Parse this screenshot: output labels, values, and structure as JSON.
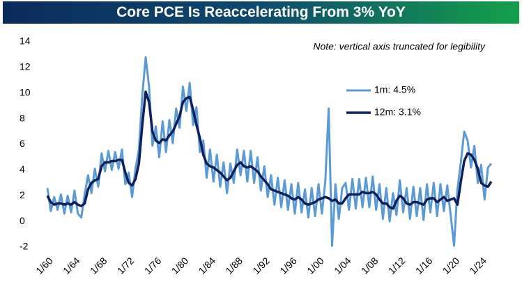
{
  "chart_data": {
    "type": "line",
    "title": "Core PCE Is Reaccelerating From 3% YoY",
    "annotation": "Note: vertical axis truncated for legibility",
    "x": [
      1960,
      1960.5,
      1961,
      1961.5,
      1962,
      1962.5,
      1963,
      1963.5,
      1964,
      1964.5,
      1965,
      1965.5,
      1966,
      1966.5,
      1967,
      1967.5,
      1968,
      1968.5,
      1969,
      1969.5,
      1970,
      1970.5,
      1971,
      1971.5,
      1972,
      1972.5,
      1973,
      1973.5,
      1974,
      1974.5,
      1975,
      1975.5,
      1976,
      1976.5,
      1977,
      1977.5,
      1978,
      1978.5,
      1979,
      1979.5,
      1980,
      1980.5,
      1981,
      1981.5,
      1982,
      1982.5,
      1983,
      1983.5,
      1984,
      1984.5,
      1985,
      1985.5,
      1986,
      1986.5,
      1987,
      1987.5,
      1988,
      1988.5,
      1989,
      1989.5,
      1990,
      1990.5,
      1991,
      1991.5,
      1992,
      1992.5,
      1993,
      1993.5,
      1994,
      1994.5,
      1995,
      1995.5,
      1996,
      1996.5,
      1997,
      1997.5,
      1998,
      1998.5,
      1999,
      1999.5,
      2000,
      2000.5,
      2001,
      2001.5,
      2002,
      2002.5,
      2003,
      2003.5,
      2004,
      2004.5,
      2005,
      2005.5,
      2006,
      2006.5,
      2007,
      2007.5,
      2008,
      2008.5,
      2009,
      2009.5,
      2010,
      2010.5,
      2011,
      2011.5,
      2012,
      2012.5,
      2013,
      2013.5,
      2014,
      2014.5,
      2015,
      2015.5,
      2016,
      2016.5,
      2017,
      2017.5,
      2018,
      2018.5,
      2019,
      2019.5,
      2020,
      2020.5,
      2021,
      2021.5,
      2022,
      2022.5,
      2023,
      2023.5,
      2024,
      2024.5,
      2025,
      2025.5
    ],
    "series": [
      {
        "name": "1m: 4.5%",
        "color": "#5b9bd5",
        "width": 3,
        "values": [
          2.6,
          0.8,
          1.9,
          0.9,
          2.1,
          0.6,
          2.0,
          0.7,
          2.4,
          0.6,
          0.3,
          2.1,
          3.6,
          2.2,
          4.1,
          2.7,
          5.3,
          3.9,
          5.5,
          4.0,
          5.4,
          4.1,
          5.6,
          2.9,
          3.8,
          1.9,
          4.1,
          5.6,
          9.8,
          12.8,
          10.5,
          5.9,
          7.4,
          5.0,
          7.8,
          5.4,
          7.9,
          6.1,
          8.8,
          7.3,
          10.5,
          8.6,
          10.8,
          7.5,
          8.9,
          5.4,
          6.3,
          3.4,
          5.6,
          3.1,
          5.2,
          2.7,
          4.6,
          2.2,
          4.5,
          3.0,
          5.6,
          3.6,
          5.5,
          3.1,
          5.5,
          3.0,
          5.0,
          2.4,
          4.3,
          1.9,
          3.6,
          1.3,
          3.4,
          1.1,
          3.2,
          0.9,
          2.9,
          0.6,
          3.0,
          0.7,
          2.5,
          0.3,
          2.6,
          0.4,
          2.9,
          0.6,
          3.1,
          8.8,
          -1.9,
          2.9,
          0.2,
          2.6,
          3.0,
          0.9,
          3.3,
          1.0,
          3.3,
          1.1,
          3.4,
          1.1,
          3.5,
          0.9,
          2.9,
          0.2,
          2.6,
          0.0,
          2.2,
          0.5,
          3.2,
          0.7,
          2.6,
          0.2,
          2.7,
          0.4,
          2.6,
          0.1,
          2.9,
          0.7,
          3.0,
          0.4,
          2.9,
          0.8,
          2.8,
          0.5,
          -1.9,
          2.5,
          4.6,
          7.0,
          6.3,
          4.2,
          5.9,
          3.0,
          4.4,
          1.7,
          4.2,
          4.5
        ]
      },
      {
        "name": "12m: 3.1%",
        "color": "#0d1f5c",
        "width": 3.5,
        "values": [
          2.0,
          1.5,
          1.3,
          1.4,
          1.4,
          1.3,
          1.4,
          1.3,
          1.5,
          1.3,
          1.2,
          1.4,
          2.5,
          3.0,
          3.2,
          3.3,
          4.3,
          4.6,
          4.6,
          4.7,
          4.7,
          4.8,
          4.8,
          3.8,
          3.0,
          2.8,
          3.3,
          4.5,
          7.5,
          10.1,
          9.3,
          7.0,
          6.3,
          6.1,
          6.4,
          6.3,
          6.7,
          7.0,
          7.6,
          8.2,
          9.3,
          9.6,
          9.7,
          8.7,
          7.5,
          6.5,
          5.2,
          4.5,
          4.3,
          4.2,
          4.0,
          3.8,
          3.5,
          3.2,
          3.4,
          3.9,
          4.4,
          4.6,
          4.3,
          4.2,
          4.3,
          4.1,
          3.9,
          3.5,
          3.2,
          2.9,
          2.5,
          2.4,
          2.3,
          2.2,
          2.1,
          2.0,
          1.8,
          1.7,
          1.9,
          1.7,
          1.4,
          1.3,
          1.4,
          1.5,
          1.7,
          1.8,
          1.9,
          1.8,
          1.6,
          1.7,
          1.4,
          1.4,
          1.8,
          2.1,
          2.1,
          2.1,
          2.1,
          2.3,
          2.2,
          2.2,
          2.3,
          2.1,
          1.7,
          1.4,
          1.4,
          1.1,
          1.0,
          1.6,
          2.0,
          1.8,
          1.4,
          1.3,
          1.5,
          1.5,
          1.4,
          1.3,
          1.7,
          1.8,
          1.8,
          1.5,
          1.7,
          1.9,
          1.6,
          1.7,
          1.8,
          1.3,
          3.1,
          4.7,
          5.3,
          5.2,
          4.8,
          4.1,
          3.0,
          2.8,
          2.7,
          3.1
        ]
      }
    ],
    "xlim": [
      1960,
      2025.5
    ],
    "xticks": [
      {
        "value": 1960,
        "label": "1/60"
      },
      {
        "value": 1964,
        "label": "1/64"
      },
      {
        "value": 1968,
        "label": "1/68"
      },
      {
        "value": 1972,
        "label": "1/72"
      },
      {
        "value": 1976,
        "label": "1/76"
      },
      {
        "value": 1980,
        "label": "1/80"
      },
      {
        "value": 1984,
        "label": "1/84"
      },
      {
        "value": 1988,
        "label": "1/88"
      },
      {
        "value": 1992,
        "label": "1/92"
      },
      {
        "value": 1996,
        "label": "1/96"
      },
      {
        "value": 2000,
        "label": "1/00"
      },
      {
        "value": 2004,
        "label": "1/04"
      },
      {
        "value": 2008,
        "label": "1/08"
      },
      {
        "value": 2012,
        "label": "1/12"
      },
      {
        "value": 2016,
        "label": "1/16"
      },
      {
        "value": 2020,
        "label": "1/20"
      },
      {
        "value": 2024,
        "label": "1/24"
      }
    ],
    "ylim": [
      -2,
      14
    ],
    "yticks": [
      -2,
      0,
      2,
      4,
      6,
      8,
      10,
      12,
      14
    ],
    "grid": false
  }
}
